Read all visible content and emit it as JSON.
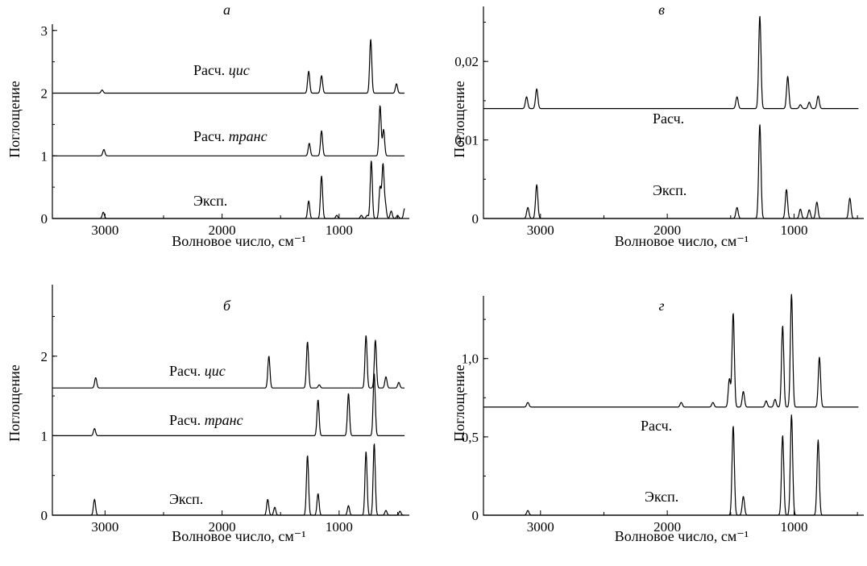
{
  "figure": {
    "panels": [
      {
        "id": "a",
        "title": "а"
      },
      {
        "id": "v",
        "title": "в"
      },
      {
        "id": "b",
        "title": "б"
      },
      {
        "id": "g",
        "title": "г"
      }
    ]
  },
  "chart_data": [
    {
      "type": "line",
      "title": "а",
      "xlabel": "Волновое число, см⁻¹",
      "ylabel": "Поглощение",
      "xlim": [
        3450,
        400
      ],
      "ylim": [
        0,
        3.1
      ],
      "xticks": [
        "3000",
        "2000",
        "1000"
      ],
      "yticks": [
        "0",
        "1",
        "2",
        "3"
      ],
      "series": [
        {
          "name": "Эксп.",
          "name_parts": [
            "Эксп.",
            ""
          ],
          "offset": 0,
          "peaks": [
            [
              3015,
              0.1
            ],
            [
              1260,
              0.28
            ],
            [
              1150,
              0.68
            ],
            [
              1020,
              0.05
            ],
            [
              810,
              0.05
            ],
            [
              760,
              0.05
            ],
            [
              725,
              0.92
            ],
            [
              650,
              0.5
            ],
            [
              625,
              0.85
            ],
            [
              605,
              0.22
            ],
            [
              555,
              0.12
            ],
            [
              500,
              0.05
            ],
            [
              440,
              0.16
            ]
          ]
        },
        {
          "name": "Расч. транс",
          "name_parts": [
            "Расч. ",
            "транс"
          ],
          "offset": 1,
          "peaks": [
            [
              3010,
              0.1
            ],
            [
              1255,
              0.2
            ],
            [
              1150,
              0.4
            ],
            [
              650,
              0.8
            ],
            [
              620,
              0.42
            ]
          ]
        },
        {
          "name": "Расч. цис",
          "name_parts": [
            "Расч. ",
            "цис"
          ],
          "offset": 2,
          "peaks": [
            [
              3025,
              0.05
            ],
            [
              1260,
              0.35
            ],
            [
              1150,
              0.28
            ],
            [
              730,
              0.86
            ],
            [
              510,
              0.15
            ]
          ]
        }
      ]
    },
    {
      "type": "line",
      "title": "в",
      "xlabel": "Волновое число, см⁻¹",
      "ylabel": "Поглощение",
      "xlim": [
        3450,
        450
      ],
      "ylim": [
        0,
        0.027
      ],
      "xticks": [
        "3000",
        "2000",
        "1000"
      ],
      "yticks": [
        "0",
        "0,01",
        "0,02"
      ],
      "series": [
        {
          "name": "Эксп.",
          "name_parts": [
            "Эксп.",
            ""
          ],
          "offset": 0.014,
          "peaks": [
            [
              3110,
              0.0015
            ],
            [
              3030,
              0.0025
            ],
            [
              1450,
              0.0015
            ],
            [
              1270,
              0.0118
            ],
            [
              1050,
              0.0041
            ],
            [
              950,
              0.0005
            ],
            [
              880,
              0.0008
            ],
            [
              810,
              0.0016
            ]
          ]
        },
        {
          "name": "Расч.",
          "name_parts": [
            "Расч.",
            ""
          ],
          "offset": 0,
          "peaks": [
            [
              3100,
              0.0014
            ],
            [
              3030,
              0.0043
            ],
            [
              1450,
              0.0014
            ],
            [
              1270,
              0.012
            ],
            [
              1060,
              0.0037
            ],
            [
              950,
              0.0012
            ],
            [
              880,
              0.0011
            ],
            [
              820,
              0.0021
            ],
            [
              560,
              0.0026
            ]
          ]
        }
      ]
    },
    {
      "type": "line",
      "title": "б",
      "xlabel": "Волновое число, см⁻¹",
      "ylabel": "Поглощение",
      "xlim": [
        3450,
        400
      ],
      "ylim": [
        0,
        2.9
      ],
      "xticks": [
        "3000",
        "2000",
        "1000"
      ],
      "yticks": [
        "0",
        "1",
        "2"
      ],
      "series": [
        {
          "name": "Эксп.",
          "name_parts": [
            "Эксп.",
            ""
          ],
          "offset": 0,
          "peaks": [
            [
              3090,
              0.2
            ],
            [
              1610,
              0.2
            ],
            [
              1550,
              0.1
            ],
            [
              1270,
              0.75
            ],
            [
              1180,
              0.27
            ],
            [
              920,
              0.12
            ],
            [
              770,
              0.8
            ],
            [
              700,
              0.9
            ],
            [
              600,
              0.06
            ],
            [
              480,
              0.05
            ]
          ]
        },
        {
          "name": "Расч. транс",
          "name_parts": [
            "Расч. ",
            "транс"
          ],
          "offset": 1,
          "peaks": [
            [
              3090,
              0.09
            ],
            [
              1180,
              0.45
            ],
            [
              920,
              0.53
            ],
            [
              700,
              0.78
            ]
          ]
        },
        {
          "name": "Расч. цис",
          "name_parts": [
            "Расч. ",
            "цис"
          ],
          "offset": 1.6,
          "peaks": [
            [
              3080,
              0.13
            ],
            [
              1600,
              0.4
            ],
            [
              1270,
              0.58
            ],
            [
              1170,
              0.04
            ],
            [
              770,
              0.66
            ],
            [
              690,
              0.6
            ],
            [
              600,
              0.14
            ],
            [
              490,
              0.07
            ]
          ]
        }
      ]
    },
    {
      "type": "line",
      "title": "г",
      "xlabel": "Волновое число, см⁻¹",
      "ylabel": "Поглощение",
      "xlim": [
        3450,
        450
      ],
      "ylim": [
        0,
        1.4
      ],
      "xticks": [
        "3000",
        "2000",
        "1000"
      ],
      "yticks": [
        "0",
        "0,5",
        "1,0"
      ],
      "series": [
        {
          "name": "Эксп.",
          "name_parts": [
            "Эксп.",
            ""
          ],
          "offset": 0.69,
          "peaks": [
            [
              3100,
              0.03
            ],
            [
              1890,
              0.03
            ],
            [
              1640,
              0.03
            ],
            [
              1510,
              0.18
            ],
            [
              1480,
              0.6
            ],
            [
              1400,
              0.1
            ],
            [
              1220,
              0.04
            ],
            [
              1150,
              0.05
            ],
            [
              1090,
              0.52
            ],
            [
              1020,
              0.72
            ],
            [
              800,
              0.32
            ],
            [
              460,
              0.18
            ]
          ]
        },
        {
          "name": "Расч.",
          "name_parts": [
            "Расч.",
            ""
          ],
          "offset": 0,
          "peaks": [
            [
              3100,
              0.03
            ],
            [
              1480,
              0.57
            ],
            [
              1400,
              0.12
            ],
            [
              1090,
              0.51
            ],
            [
              1020,
              0.64
            ],
            [
              810,
              0.48
            ],
            [
              460,
              0.08
            ]
          ]
        }
      ]
    }
  ]
}
